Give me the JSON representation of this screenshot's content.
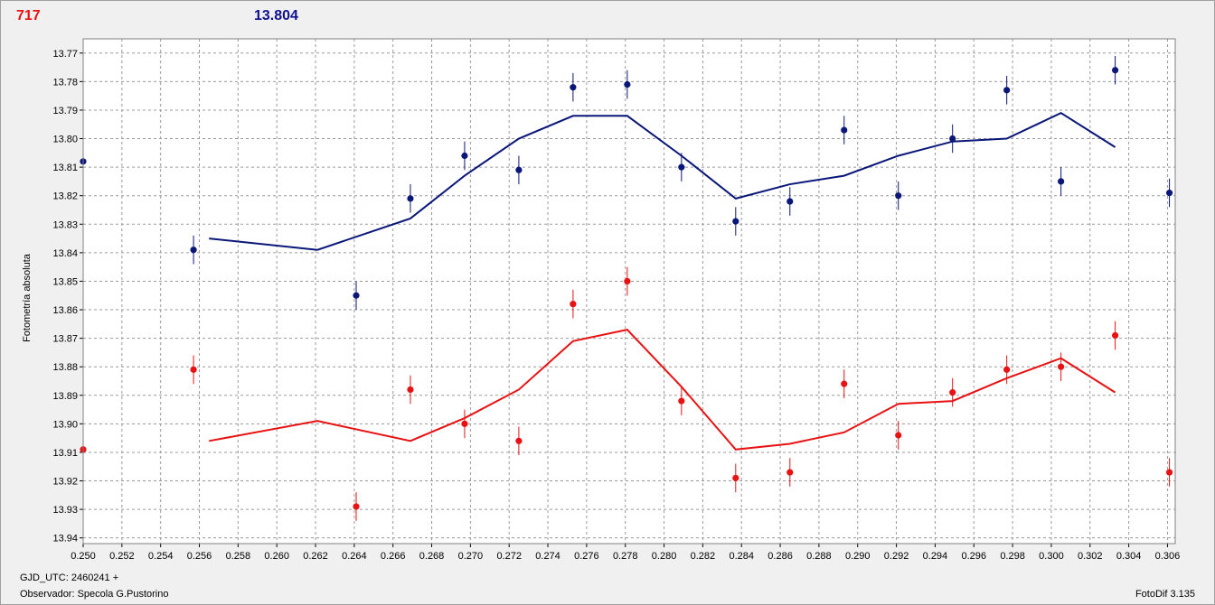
{
  "header": {
    "left_value": "717",
    "right_value": "13.804"
  },
  "footer": {
    "gjd_label": "GJD_UTC: 2460241 +",
    "observer_label": "Observador: Specola G.Pustorino",
    "version_label": "FotoDif 3.135"
  },
  "colors": {
    "series_blue": "#0a1678",
    "series_red": "#e81212",
    "grid": "#9a9a9a",
    "plot_bg": "#ffffff"
  },
  "chart_data": {
    "type": "scatter",
    "ylabel": "Fotometría absoluta",
    "xlabel": "",
    "xlim": [
      0.25,
      0.3064
    ],
    "ylim": [
      13.765,
      13.942
    ],
    "y_inverted": true,
    "grid": true,
    "x_ticks": [
      "0.250",
      "0.252",
      "0.254",
      "0.256",
      "0.258",
      "0.260",
      "0.262",
      "0.264",
      "0.266",
      "0.268",
      "0.270",
      "0.272",
      "0.274",
      "0.276",
      "0.278",
      "0.280",
      "0.282",
      "0.284",
      "0.286",
      "0.288",
      "0.290",
      "0.292",
      "0.294",
      "0.296",
      "0.298",
      "0.300",
      "0.302",
      "0.304",
      "0.306"
    ],
    "y_ticks": [
      "13.77",
      "13.78",
      "13.79",
      "13.80",
      "13.81",
      "13.82",
      "13.83",
      "13.84",
      "13.85",
      "13.86",
      "13.87",
      "13.88",
      "13.89",
      "13.90",
      "13.91",
      "13.92",
      "13.93",
      "13.94"
    ],
    "series": [
      {
        "color": "#0a1678",
        "points": [
          {
            "x": 0.25,
            "y": 13.808,
            "err": 0.005
          },
          {
            "x": 0.2557,
            "y": 13.839,
            "err": 0.005
          },
          {
            "x": 0.2641,
            "y": 13.855,
            "err": 0.005
          },
          {
            "x": 0.2669,
            "y": 13.821,
            "err": 0.005
          },
          {
            "x": 0.2697,
            "y": 13.806,
            "err": 0.005
          },
          {
            "x": 0.2725,
            "y": 13.811,
            "err": 0.005
          },
          {
            "x": 0.2753,
            "y": 13.782,
            "err": 0.005
          },
          {
            "x": 0.2781,
            "y": 13.781,
            "err": 0.005
          },
          {
            "x": 0.2809,
            "y": 13.81,
            "err": 0.005
          },
          {
            "x": 0.2837,
            "y": 13.829,
            "err": 0.005
          },
          {
            "x": 0.2865,
            "y": 13.822,
            "err": 0.005
          },
          {
            "x": 0.2893,
            "y": 13.797,
            "err": 0.005
          },
          {
            "x": 0.2921,
            "y": 13.82,
            "err": 0.005
          },
          {
            "x": 0.2949,
            "y": 13.8,
            "err": 0.005
          },
          {
            "x": 0.2977,
            "y": 13.783,
            "err": 0.005
          },
          {
            "x": 0.3005,
            "y": 13.815,
            "err": 0.005
          },
          {
            "x": 0.3033,
            "y": 13.776,
            "err": 0.005
          },
          {
            "x": 0.3061,
            "y": 13.819,
            "err": 0.005
          }
        ],
        "line": [
          {
            "x": 0.2565,
            "y": 13.835
          },
          {
            "x": 0.2621,
            "y": 13.839
          },
          {
            "x": 0.2669,
            "y": 13.828
          },
          {
            "x": 0.2697,
            "y": 13.813
          },
          {
            "x": 0.2725,
            "y": 13.8
          },
          {
            "x": 0.2753,
            "y": 13.792
          },
          {
            "x": 0.2781,
            "y": 13.792
          },
          {
            "x": 0.2809,
            "y": 13.806
          },
          {
            "x": 0.2837,
            "y": 13.821
          },
          {
            "x": 0.2865,
            "y": 13.816
          },
          {
            "x": 0.2893,
            "y": 13.813
          },
          {
            "x": 0.2921,
            "y": 13.806
          },
          {
            "x": 0.2949,
            "y": 13.801
          },
          {
            "x": 0.2977,
            "y": 13.8
          },
          {
            "x": 0.3005,
            "y": 13.791
          },
          {
            "x": 0.3033,
            "y": 13.803
          }
        ]
      },
      {
        "color": "#e81212",
        "points": [
          {
            "x": 0.25,
            "y": 13.909,
            "err": 0.005
          },
          {
            "x": 0.2557,
            "y": 13.881,
            "err": 0.005
          },
          {
            "x": 0.2641,
            "y": 13.929,
            "err": 0.005
          },
          {
            "x": 0.2669,
            "y": 13.888,
            "err": 0.005
          },
          {
            "x": 0.2697,
            "y": 13.9,
            "err": 0.005
          },
          {
            "x": 0.2725,
            "y": 13.906,
            "err": 0.005
          },
          {
            "x": 0.2753,
            "y": 13.858,
            "err": 0.005
          },
          {
            "x": 0.2781,
            "y": 13.85,
            "err": 0.005
          },
          {
            "x": 0.2809,
            "y": 13.892,
            "err": 0.005
          },
          {
            "x": 0.2837,
            "y": 13.919,
            "err": 0.005
          },
          {
            "x": 0.2865,
            "y": 13.917,
            "err": 0.005
          },
          {
            "x": 0.2893,
            "y": 13.886,
            "err": 0.005
          },
          {
            "x": 0.2921,
            "y": 13.904,
            "err": 0.005
          },
          {
            "x": 0.2949,
            "y": 13.889,
            "err": 0.005
          },
          {
            "x": 0.2977,
            "y": 13.881,
            "err": 0.005
          },
          {
            "x": 0.3005,
            "y": 13.88,
            "err": 0.005
          },
          {
            "x": 0.3033,
            "y": 13.869,
            "err": 0.005
          },
          {
            "x": 0.3061,
            "y": 13.917,
            "err": 0.005
          }
        ],
        "line": [
          {
            "x": 0.2565,
            "y": 13.906
          },
          {
            "x": 0.2621,
            "y": 13.899
          },
          {
            "x": 0.2669,
            "y": 13.906
          },
          {
            "x": 0.2697,
            "y": 13.898
          },
          {
            "x": 0.2725,
            "y": 13.888
          },
          {
            "x": 0.2753,
            "y": 13.871
          },
          {
            "x": 0.2781,
            "y": 13.867
          },
          {
            "x": 0.2809,
            "y": 13.887
          },
          {
            "x": 0.2837,
            "y": 13.909
          },
          {
            "x": 0.2865,
            "y": 13.907
          },
          {
            "x": 0.2893,
            "y": 13.903
          },
          {
            "x": 0.2921,
            "y": 13.893
          },
          {
            "x": 0.2949,
            "y": 13.892
          },
          {
            "x": 0.2977,
            "y": 13.884
          },
          {
            "x": 0.3005,
            "y": 13.877
          },
          {
            "x": 0.3033,
            "y": 13.889
          }
        ]
      }
    ]
  }
}
